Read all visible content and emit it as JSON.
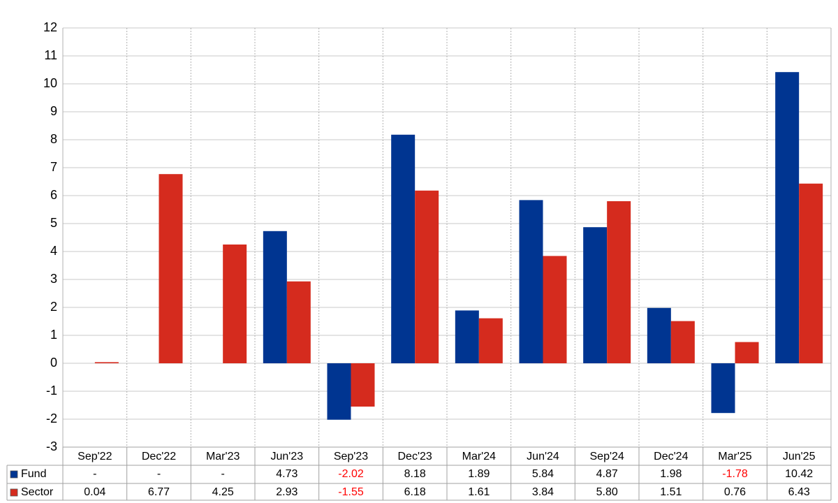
{
  "chart_data": {
    "type": "bar",
    "categories": [
      "Sep'22",
      "Dec'22",
      "Mar'23",
      "Jun'23",
      "Sep'23",
      "Dec'23",
      "Mar'24",
      "Jun'24",
      "Sep'24",
      "Dec'24",
      "Mar'25",
      "Jun'25"
    ],
    "series": [
      {
        "name": "Fund",
        "color": "#003591",
        "values": [
          null,
          null,
          null,
          4.73,
          -2.02,
          8.18,
          1.89,
          5.84,
          4.87,
          1.98,
          -1.78,
          10.42
        ],
        "value_labels": [
          "-",
          "-",
          "-",
          "4.73",
          "-2.02",
          "8.18",
          "1.89",
          "5.84",
          "4.87",
          "1.98",
          "-1.78",
          "10.42"
        ]
      },
      {
        "name": "Sector",
        "color": "#d52b1e",
        "values": [
          0.04,
          6.77,
          4.25,
          2.93,
          -1.55,
          6.18,
          1.61,
          3.84,
          5.8,
          1.51,
          0.76,
          6.43
        ],
        "value_labels": [
          "0.04",
          "6.77",
          "4.25",
          "2.93",
          "-1.55",
          "6.18",
          "1.61",
          "3.84",
          "5.80",
          "1.51",
          "0.76",
          "6.43"
        ]
      }
    ],
    "ylim": [
      -3,
      12
    ],
    "yticks": [
      -3,
      -2,
      -1,
      0,
      1,
      2,
      3,
      4,
      5,
      6,
      7,
      8,
      9,
      10,
      11,
      12
    ],
    "grid": true,
    "negative_label_color": "#ff0000"
  }
}
